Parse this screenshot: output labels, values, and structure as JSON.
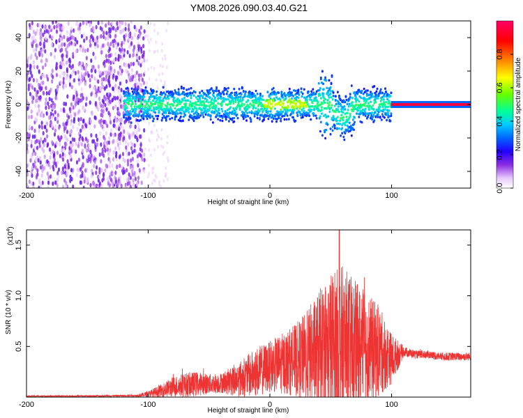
{
  "title": "YM08.2026.090.03.40.G21",
  "chart_data": [
    {
      "type": "heatmap",
      "name": "spectrogram",
      "xlabel": "Height of straight line (km)",
      "ylabel": "Frequency (Hz)",
      "xlim": [
        -200,
        165
      ],
      "ylim": [
        -50,
        50
      ],
      "xticks": [
        -200,
        -100,
        0,
        100
      ],
      "yticks": [
        -40,
        -20,
        0,
        20,
        40
      ],
      "colorbar": {
        "label": "Normalized spectral amplitude",
        "range": [
          0.0,
          1.0
        ],
        "ticks": [
          "0.0",
          "0.2",
          "0.4",
          "0.6",
          "0.8"
        ],
        "colors": [
          "#ffffff",
          "#e8c8ff",
          "#8a2be2",
          "#2200ff",
          "#0066ff",
          "#00ccff",
          "#00ff99",
          "#66ff00",
          "#ffff00",
          "#ff8800",
          "#ff0000",
          "#ff0066"
        ]
      },
      "regions": [
        {
          "x": [
            -200,
            -105
          ],
          "description_level": 0.15,
          "freq_span": [
            -50,
            50
          ]
        },
        {
          "x": [
            -110,
            -85
          ],
          "description_level": 0.05,
          "freq_span": [
            -50,
            50
          ]
        },
        {
          "x": [
            -120,
            100
          ],
          "description_level": 0.35,
          "freq_span": [
            -10,
            10
          ]
        },
        {
          "x": [
            40,
            55
          ],
          "description_level": 0.3,
          "freq_span": [
            -10,
            25
          ]
        },
        {
          "x": [
            55,
            70
          ],
          "description_level": 0.3,
          "freq_span": [
            -25,
            5
          ]
        },
        {
          "x": [
            100,
            165
          ],
          "description_level": 0.95,
          "freq_span": [
            -1,
            1
          ]
        }
      ]
    },
    {
      "type": "area",
      "name": "snr",
      "xlabel": "Height of straight line (km)",
      "ylabel": "SNR (10 * v/v)",
      "yscale_label": "(x10",
      "yscale_exp": "4",
      "yscale_close": ")",
      "xlim": [
        -200,
        165
      ],
      "ylim": [
        0,
        1.65
      ],
      "xticks": [
        -200,
        -100,
        0,
        100
      ],
      "yticks": [
        0.5,
        1.0,
        1.5
      ],
      "ytick_labels": [
        "0.5",
        "1.0",
        "1.5"
      ],
      "color": "#ee3333",
      "envelope": {
        "x": [
          -200,
          -150,
          -110,
          -100,
          -90,
          -80,
          -70,
          -60,
          -50,
          -40,
          -30,
          -20,
          -10,
          0,
          10,
          20,
          30,
          40,
          50,
          60,
          70,
          80,
          90,
          100,
          110,
          120,
          130,
          140,
          150,
          165
        ],
        "mean": [
          0.01,
          0.01,
          0.015,
          0.03,
          0.06,
          0.1,
          0.12,
          0.13,
          0.13,
          0.14,
          0.16,
          0.2,
          0.25,
          0.3,
          0.33,
          0.36,
          0.4,
          0.45,
          0.5,
          0.5,
          0.5,
          0.48,
          0.45,
          0.38,
          0.45,
          0.42,
          0.42,
          0.4,
          0.4,
          0.4
        ],
        "amp": [
          0.005,
          0.008,
          0.01,
          0.03,
          0.06,
          0.1,
          0.12,
          0.12,
          0.1,
          0.1,
          0.15,
          0.2,
          0.25,
          0.25,
          0.3,
          0.35,
          0.45,
          0.6,
          0.75,
          0.8,
          0.65,
          0.55,
          0.45,
          0.25,
          0.05,
          0.04,
          0.04,
          0.04,
          0.04,
          0.04
        ]
      },
      "peak": {
        "x": 57,
        "y": 1.65
      }
    }
  ]
}
